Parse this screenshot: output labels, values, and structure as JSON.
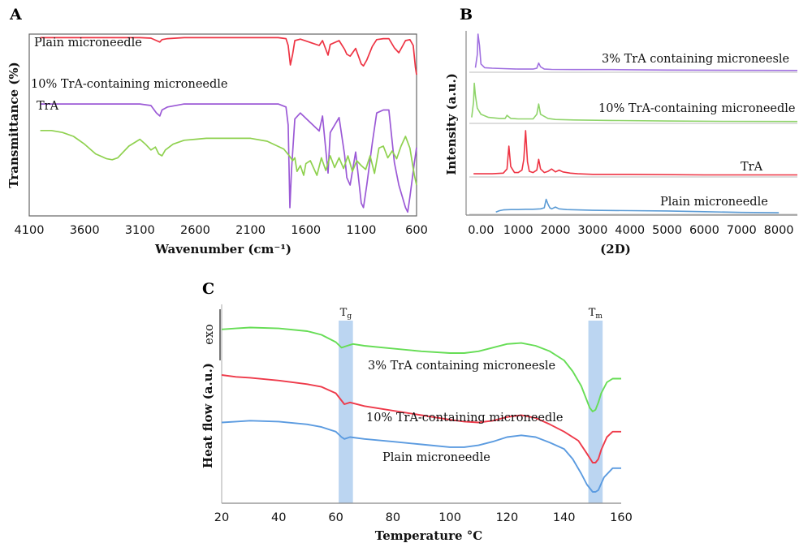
{
  "chart_data": [
    {
      "panel": "A",
      "type": "line",
      "xlabel": "Wavenumber (cm⁻¹)",
      "ylabel": "Transmittance (%)",
      "xlim": [
        4100,
        600
      ],
      "xticks": [
        4100,
        3600,
        3100,
        2600,
        2100,
        1600,
        1100,
        600
      ],
      "series": [
        {
          "name": "Plain microneedle",
          "color": "#ee3343",
          "x": [
            4000,
            3500,
            3100,
            3000,
            2950,
            2920,
            2900,
            2850,
            2700,
            2300,
            2000,
            1850,
            1780,
            1760,
            1740,
            1720,
            1700,
            1650,
            1480,
            1450,
            1400,
            1380,
            1300,
            1250,
            1230,
            1200,
            1150,
            1100,
            1080,
            1050,
            1000,
            960,
            900,
            850,
            800,
            760,
            700,
            660,
            630,
            610,
            600
          ],
          "y": [
            96,
            96,
            96,
            95,
            90,
            87,
            92,
            94,
            96,
            96,
            96,
            96,
            94,
            80,
            40,
            62,
            90,
            93,
            80,
            90,
            60,
            82,
            90,
            72,
            62,
            58,
            74,
            42,
            38,
            50,
            78,
            92,
            94,
            94,
            75,
            65,
            90,
            92,
            80,
            35,
            20
          ]
        },
        {
          "name": "10% TrA-containing microneedle",
          "color": "#9b59d6",
          "x": [
            4000,
            3500,
            3100,
            3000,
            2950,
            2920,
            2900,
            2850,
            2700,
            2300,
            2000,
            1850,
            1780,
            1760,
            1745,
            1730,
            1700,
            1650,
            1480,
            1450,
            1400,
            1380,
            1300,
            1250,
            1230,
            1200,
            1150,
            1100,
            1080,
            1050,
            1000,
            960,
            900,
            850,
            800,
            760,
            700,
            680,
            660,
            620,
            600
          ],
          "y": [
            74,
            74,
            74,
            73,
            68,
            66,
            70,
            72,
            74,
            74,
            74,
            74,
            72,
            60,
            5,
            30,
            64,
            68,
            56,
            66,
            28,
            55,
            65,
            40,
            25,
            20,
            42,
            8,
            5,
            20,
            48,
            68,
            70,
            70,
            35,
            20,
            5,
            2,
            12,
            35,
            45
          ]
        },
        {
          "name": "TrA",
          "color": "#8fd14f",
          "x": [
            4000,
            3900,
            3800,
            3700,
            3600,
            3500,
            3400,
            3350,
            3300,
            3200,
            3100,
            3050,
            3000,
            2960,
            2930,
            2900,
            2870,
            2800,
            2700,
            2600,
            2500,
            2300,
            2100,
            1950,
            1800,
            1750,
            1720,
            1700,
            1680,
            1650,
            1620,
            1600,
            1560,
            1500,
            1460,
            1420,
            1380,
            1340,
            1300,
            1260,
            1220,
            1180,
            1140,
            1100,
            1060,
            1020,
            980,
            940,
            900,
            860,
            820,
            780,
            740,
            700,
            660,
            620,
            600
          ],
          "y": [
            66,
            66,
            64,
            60,
            52,
            42,
            37,
            36,
            38,
            50,
            57,
            52,
            46,
            49,
            42,
            40,
            46,
            52,
            56,
            57,
            58,
            58,
            58,
            55,
            47,
            40,
            35,
            38,
            24,
            30,
            20,
            32,
            35,
            20,
            38,
            25,
            40,
            28,
            38,
            27,
            40,
            24,
            35,
            30,
            26,
            40,
            22,
            48,
            50,
            38,
            45,
            37,
            50,
            60,
            48,
            20,
            10
          ]
        }
      ]
    },
    {
      "panel": "B",
      "type": "line",
      "xlabel": "(2D)",
      "ylabel": "Intensity (a.u.)",
      "xlim": [
        -400,
        8500
      ],
      "xticks": [
        0,
        1000,
        2000,
        3000,
        4000,
        5000,
        6000,
        7000,
        8000
      ],
      "xtick_labels": [
        "0.00",
        "1000",
        "2000",
        "3000",
        "4000",
        "5000",
        "6000",
        "7000",
        "8000"
      ],
      "series": [
        {
          "name": "3% TrA containing microneesle",
          "color": "#a070e0",
          "x": [
            -150,
            -100,
            -80,
            -40,
            0,
            100,
            300,
            600,
            1000,
            1400,
            1500,
            1550,
            1600,
            1700,
            1900,
            2500,
            3500,
            5000,
            6500,
            8500
          ],
          "y": [
            4,
            18,
            40,
            28,
            8,
            4,
            3.5,
            3,
            2.5,
            2.5,
            3.5,
            9,
            5,
            2.5,
            2.2,
            2,
            2,
            1.5,
            1.2,
            1
          ]
        },
        {
          "name": "10% TrA-containing microneedle",
          "color": "#8fd46a",
          "x": [
            -250,
            -200,
            -180,
            -150,
            -100,
            0,
            200,
            500,
            650,
            700,
            800,
            1000,
            1400,
            1500,
            1550,
            1600,
            1800,
            2000,
            2500,
            3500,
            5000,
            6500,
            8500
          ],
          "y": [
            5,
            20,
            38,
            26,
            14,
            8,
            5,
            4,
            4,
            7,
            4,
            3.5,
            3.5,
            8,
            18,
            8,
            4,
            3,
            2.5,
            2,
            1.5,
            1.2,
            1
          ]
        },
        {
          "name": "TrA",
          "color": "#ee3343",
          "x": [
            -200,
            0,
            300,
            600,
            700,
            750,
            800,
            900,
            1000,
            1100,
            1150,
            1200,
            1250,
            1300,
            1400,
            1500,
            1550,
            1600,
            1700,
            1800,
            1900,
            2000,
            2100,
            2200,
            2400,
            2600,
            3000,
            4000,
            6000,
            8500
          ],
          "y": [
            2,
            2,
            2,
            2.5,
            6,
            25,
            8,
            3,
            3,
            5,
            14,
            38,
            12,
            4,
            3,
            5,
            14,
            6,
            3,
            4,
            6,
            3.5,
            5,
            3.5,
            2.5,
            2,
            1.5,
            1.5,
            1,
            1
          ]
        },
        {
          "name": "Plain microneedle",
          "color": "#5b9bd5",
          "x": [
            400,
            500,
            600,
            800,
            1000,
            1200,
            1400,
            1600,
            1700,
            1750,
            1800,
            1850,
            1900,
            2000,
            2100,
            2300,
            2600,
            3000,
            4000,
            5000,
            6000,
            7000,
            8000
          ],
          "y": [
            2,
            4,
            5,
            5.5,
            5.5,
            6,
            6,
            6.5,
            8,
            20,
            13,
            8,
            6.5,
            9,
            6.5,
            5.5,
            5,
            4.5,
            4,
            3.5,
            2.5,
            1.5,
            1
          ]
        }
      ]
    },
    {
      "panel": "C",
      "type": "line",
      "xlabel": "Temperature °C",
      "ylabel": "Heat flow (a.u.)",
      "exo_label": "exo",
      "xlim": [
        20,
        160
      ],
      "xticks": [
        20,
        40,
        60,
        80,
        100,
        120,
        140,
        160
      ],
      "bands": [
        {
          "label": "Tg",
          "main": "T",
          "sub": "g",
          "from": 61,
          "to": 66
        },
        {
          "label": "Tm",
          "main": "T",
          "sub": "m",
          "from": 148.5,
          "to": 153.5
        }
      ],
      "series": [
        {
          "name": "3% TrA containing microneesle",
          "color": "#66dd55",
          "x": [
            20,
            25,
            30,
            40,
            50,
            55,
            60,
            62,
            64,
            66,
            70,
            80,
            90,
            100,
            105,
            110,
            115,
            120,
            125,
            130,
            135,
            140,
            143,
            146,
            148,
            149,
            150,
            151,
            152,
            153,
            155,
            157,
            160
          ],
          "y": [
            93,
            93.5,
            94,
            93.5,
            92,
            90,
            86,
            83,
            84,
            85,
            84,
            82.5,
            81,
            80,
            80,
            81,
            83,
            85,
            85.5,
            84,
            81,
            76,
            70,
            62,
            54,
            50,
            48,
            49,
            53,
            58,
            64,
            66,
            66
          ]
        },
        {
          "name": "10% TrA-containing microneedle",
          "color": "#ee3a4a",
          "x": [
            20,
            25,
            30,
            40,
            50,
            55,
            60,
            62,
            63,
            65,
            70,
            80,
            90,
            100,
            105,
            110,
            115,
            120,
            125,
            130,
            135,
            140,
            145,
            148,
            150,
            151,
            152,
            153,
            155,
            157,
            160
          ],
          "y": [
            68,
            67,
            66.5,
            65,
            63,
            61.5,
            58,
            54,
            52,
            53,
            51,
            48.5,
            46,
            43.5,
            42.5,
            42,
            43,
            45,
            46,
            44.5,
            41,
            37,
            32,
            25,
            20,
            20,
            22,
            27,
            34,
            37,
            37
          ]
        },
        {
          "name": "Plain microneedle",
          "color": "#5b9be0",
          "x": [
            20,
            25,
            30,
            40,
            50,
            55,
            60,
            62,
            63,
            65,
            70,
            80,
            90,
            100,
            105,
            110,
            115,
            120,
            125,
            130,
            135,
            140,
            143,
            146,
            148,
            150,
            151,
            152,
            154,
            157,
            160
          ],
          "y": [
            42,
            42.5,
            43,
            42.5,
            41,
            39.5,
            37,
            34,
            33,
            34,
            33,
            31.5,
            30,
            28.5,
            28.5,
            29.5,
            31.5,
            34,
            35,
            34,
            31,
            27.5,
            22,
            14,
            8,
            4,
            4,
            5,
            12,
            17,
            17
          ]
        }
      ]
    }
  ],
  "panels": {
    "A": {
      "letter": "A",
      "xlabel": "Wavenumber (cm⁻¹)",
      "ylabel": "Transmittance (%)",
      "labels": [
        "Plain microneedle",
        "10% TrA-containing microneedle",
        "TrA"
      ]
    },
    "B": {
      "letter": "B",
      "xlabel": "(2D)",
      "ylabel": "Intensity (a.u.)",
      "labels": [
        "3% TrA containing microneesle",
        "10% TrA-containing microneedle",
        "TrA",
        "Plain microneedle"
      ]
    },
    "C": {
      "letter": "C",
      "xlabel": "Temperature °C",
      "ylabel": "Heat flow (a.u.)",
      "labels": [
        "3% TrA containing microneesle",
        "10% TrA-containing microneedle",
        "Plain microneedle"
      ]
    }
  }
}
